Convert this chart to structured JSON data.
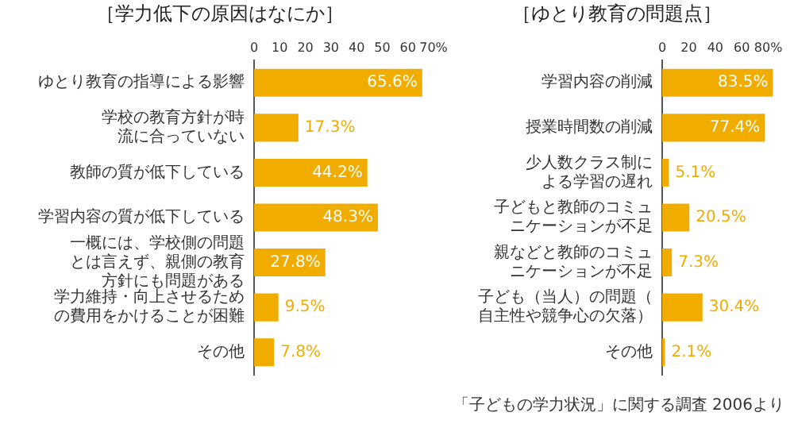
{
  "chart_data": [
    {
      "type": "bar",
      "orientation": "horizontal",
      "title": "［学力低下の原因はなにか］",
      "categories": [
        "ゆとり教育の指導による影響",
        "学校の教育方針が時流に合っていない",
        "教師の質が低下している",
        "学習内容の質が低下している",
        "一概には、学校側の問題とは言えず、親側の教育方針にも問題がある",
        "学力維持・向上させるための費用をかけることが困難",
        "その他"
      ],
      "values": [
        65.6,
        17.3,
        44.2,
        48.3,
        27.8,
        9.5,
        7.8
      ],
      "value_labels": [
        "65.6%",
        "17.3%",
        "44.2%",
        "48.3%",
        "27.8%",
        "9.5%",
        "7.8%"
      ],
      "color": "#f0ad00",
      "xlim": [
        0,
        70
      ],
      "xticks": [
        0,
        10,
        20,
        30,
        40,
        50,
        60,
        {
          "value": 70,
          "label": "70%"
        }
      ],
      "grid": false
    },
    {
      "type": "bar",
      "orientation": "horizontal",
      "title": "［ゆとり教育の問題点］",
      "categories": [
        "学習内容の削減",
        "授業時間数の削減",
        "少人数クラス制による学習の遅れ",
        "子どもと教師のコミュニケーションが不足",
        "親などと教師のコミュニケーションが不足",
        "子ども（当人）の問題（自主性や競争心の欠落）",
        "その他"
      ],
      "values": [
        83.5,
        77.4,
        5.1,
        20.5,
        7.3,
        30.4,
        2.1
      ],
      "value_labels": [
        "83.5%",
        "77.4%",
        "5.1%",
        "20.5%",
        "7.3%",
        "30.4%",
        "2.1%"
      ],
      "color": "#f0ad00",
      "xlim": [
        0,
        85
      ],
      "xticks": [
        0,
        20,
        40,
        60,
        {
          "value": 80,
          "label": "80%"
        }
      ],
      "grid": false,
      "annotations": [
        "「子どもの学力状況」に関する調査 2006より"
      ]
    }
  ]
}
